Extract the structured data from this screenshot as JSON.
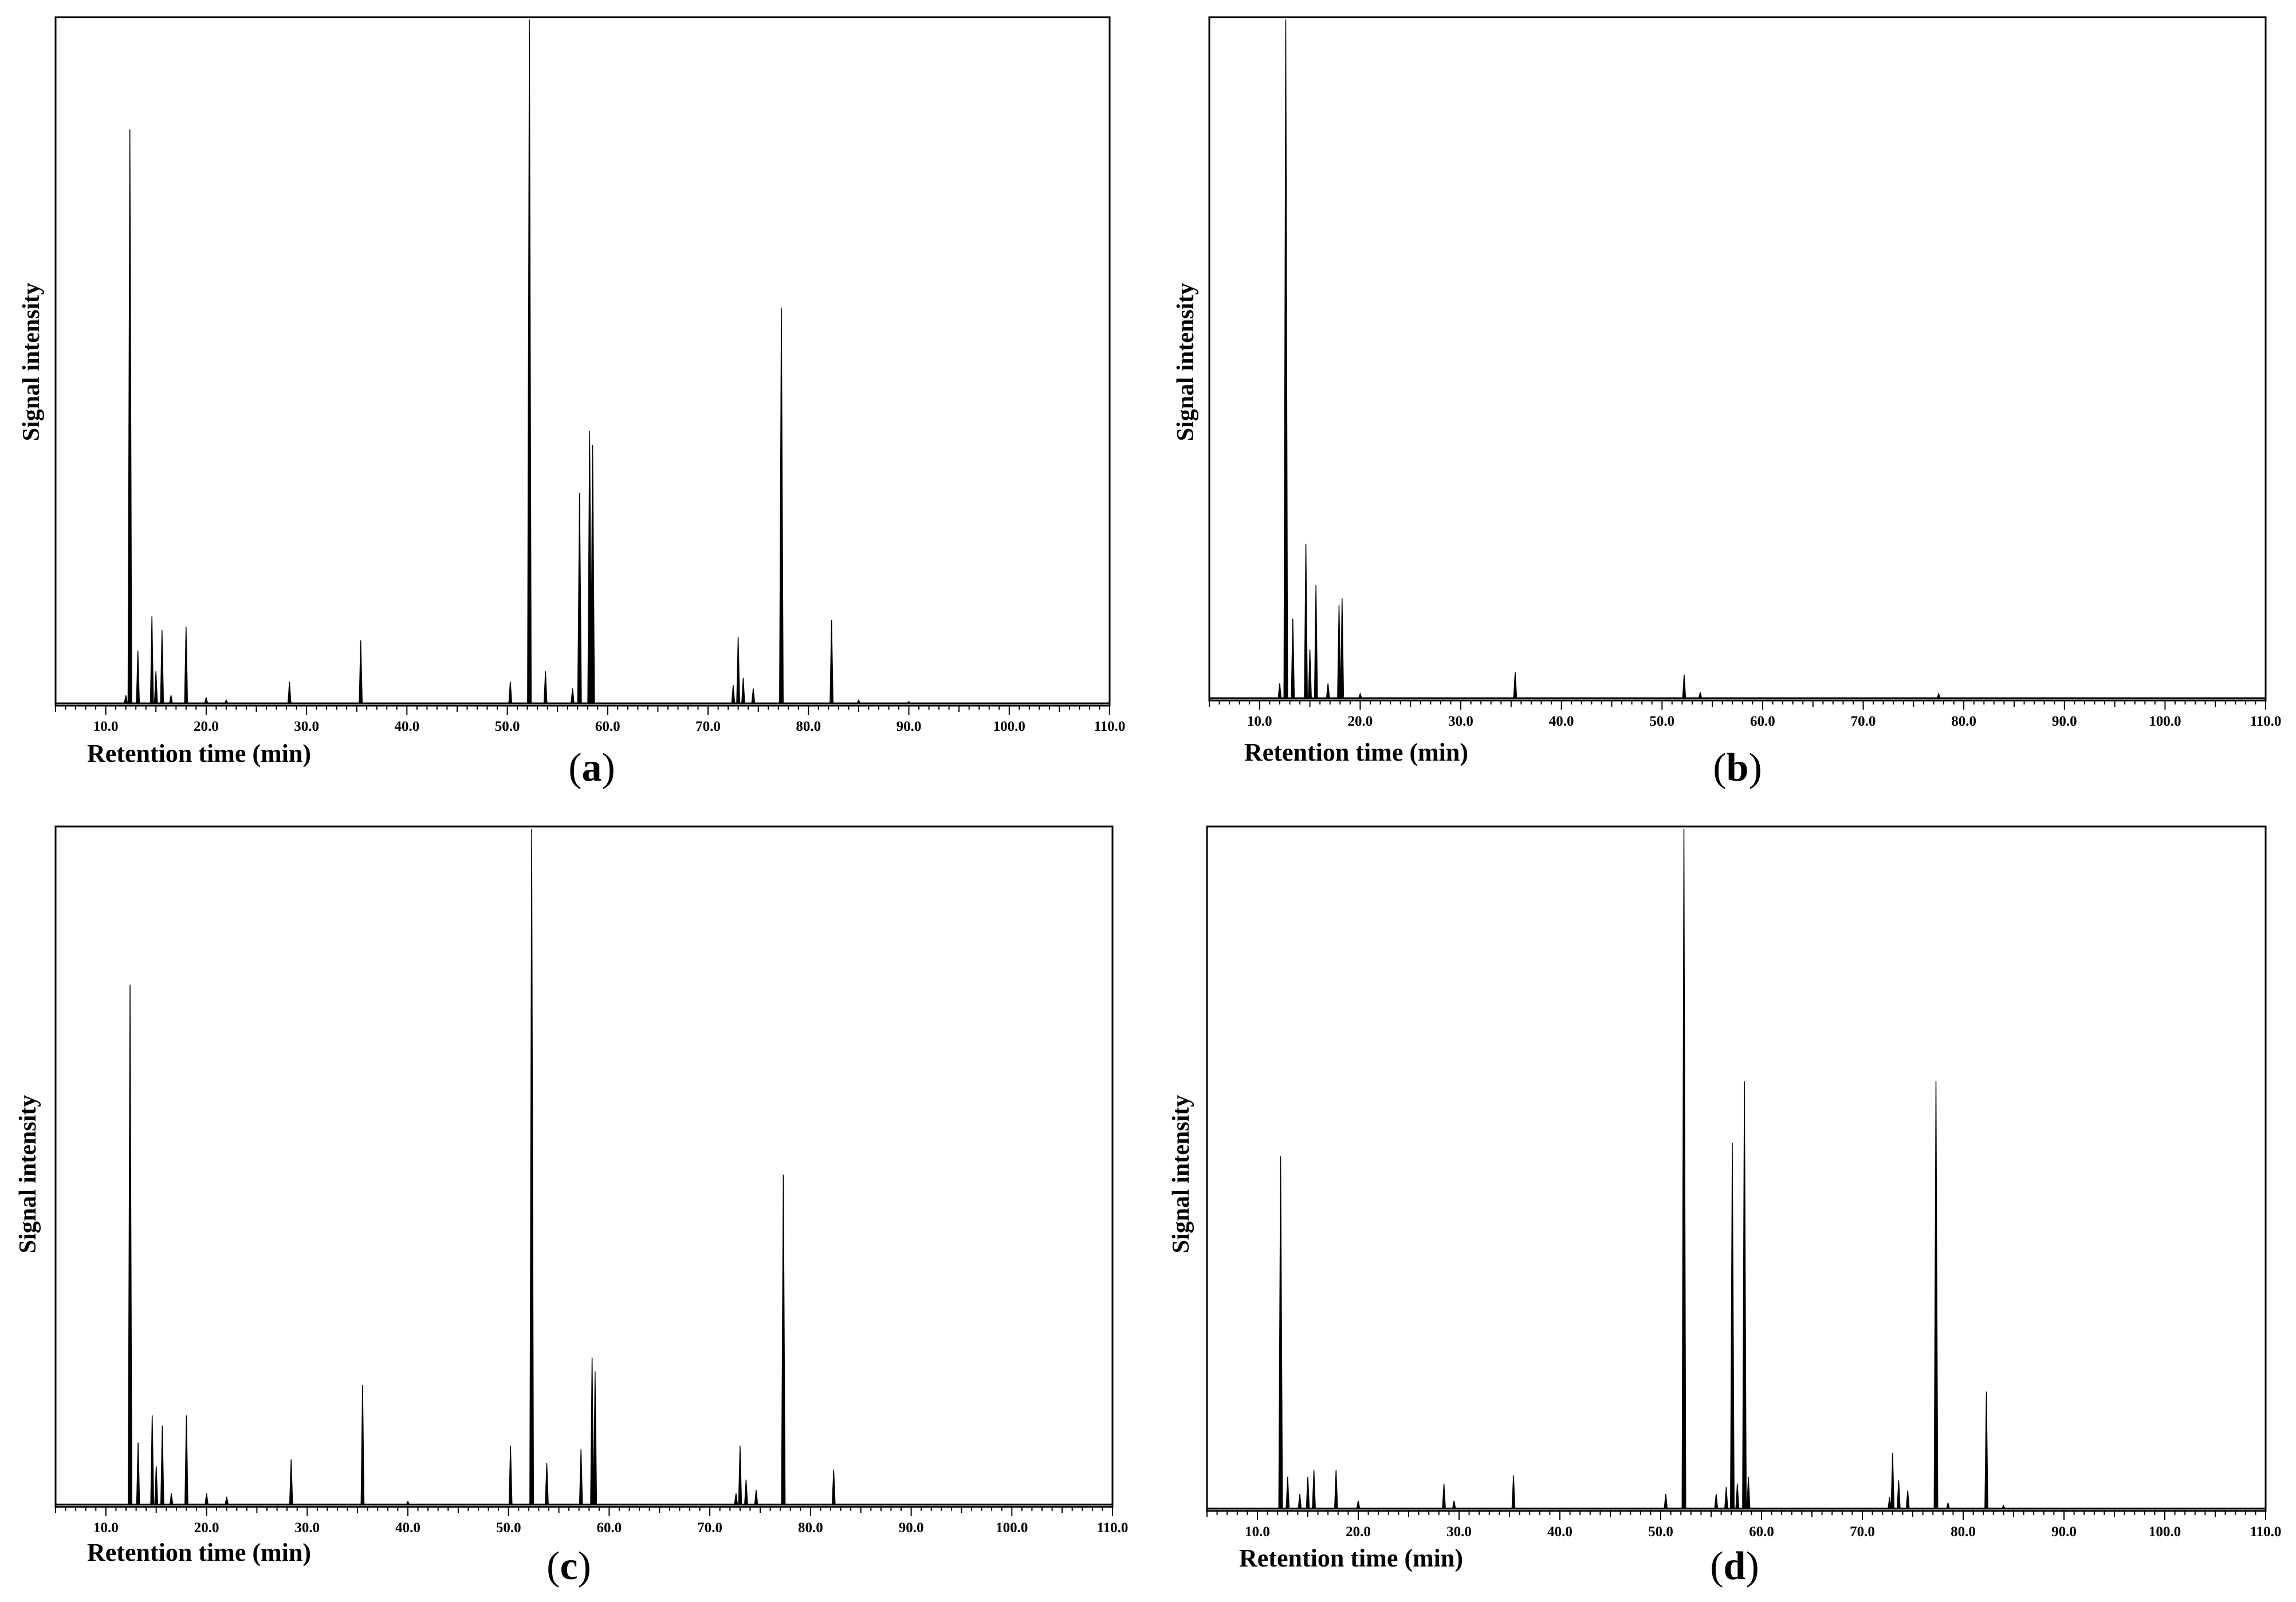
{
  "chart_data": [
    {
      "type": "line",
      "panel_label": "a",
      "xlabel": "Retention time (min)",
      "ylabel": "Signal intensity",
      "xlim": [
        5,
        110
      ],
      "ylim": [
        0,
        100
      ],
      "x_ticks": [
        "10.0",
        "20.0",
        "30.0",
        "40.0",
        "50.0",
        "60.0",
        "70.0",
        "80.0",
        "90.0",
        "100.0",
        "110.0"
      ],
      "grid": false,
      "peaks": [
        {
          "x": 12.0,
          "y": 1.5
        },
        {
          "x": 12.4,
          "y": 84
        },
        {
          "x": 13.2,
          "y": 8
        },
        {
          "x": 14.6,
          "y": 13
        },
        {
          "x": 15.0,
          "y": 5
        },
        {
          "x": 15.6,
          "y": 11
        },
        {
          "x": 16.5,
          "y": 1.5
        },
        {
          "x": 18.0,
          "y": 11.5
        },
        {
          "x": 20.0,
          "y": 1.2
        },
        {
          "x": 22.0,
          "y": 0.8
        },
        {
          "x": 28.3,
          "y": 3.5
        },
        {
          "x": 35.4,
          "y": 9.5
        },
        {
          "x": 50.3,
          "y": 3.5
        },
        {
          "x": 52.2,
          "y": 100
        },
        {
          "x": 53.8,
          "y": 5
        },
        {
          "x": 56.5,
          "y": 2.5
        },
        {
          "x": 57.2,
          "y": 31
        },
        {
          "x": 58.2,
          "y": 40
        },
        {
          "x": 58.5,
          "y": 38
        },
        {
          "x": 72.5,
          "y": 3
        },
        {
          "x": 73.0,
          "y": 10
        },
        {
          "x": 73.5,
          "y": 4
        },
        {
          "x": 74.5,
          "y": 2.5
        },
        {
          "x": 77.3,
          "y": 58
        },
        {
          "x": 82.3,
          "y": 12.5
        },
        {
          "x": 85.0,
          "y": 0.8
        },
        {
          "x": 90.0,
          "y": 0.6
        }
      ]
    },
    {
      "type": "line",
      "panel_label": "b",
      "xlabel": "Retention time (min)",
      "ylabel": "Signal intensity",
      "xlim": [
        5,
        110
      ],
      "ylim": [
        0,
        100
      ],
      "x_ticks": [
        "10.0",
        "20.0",
        "30.0",
        "40.0",
        "50.0",
        "60.0",
        "70.0",
        "80.0",
        "90.0",
        "100.0",
        "110.0"
      ],
      "grid": false,
      "peaks": [
        {
          "x": 12.0,
          "y": 2.5
        },
        {
          "x": 12.6,
          "y": 100
        },
        {
          "x": 13.3,
          "y": 12
        },
        {
          "x": 14.6,
          "y": 23
        },
        {
          "x": 15.0,
          "y": 7.5
        },
        {
          "x": 15.6,
          "y": 17
        },
        {
          "x": 16.8,
          "y": 2.5
        },
        {
          "x": 17.9,
          "y": 14
        },
        {
          "x": 18.2,
          "y": 15
        },
        {
          "x": 20.0,
          "y": 1.0
        },
        {
          "x": 35.4,
          "y": 4.2
        },
        {
          "x": 52.2,
          "y": 3.8
        },
        {
          "x": 53.8,
          "y": 1.2
        },
        {
          "x": 77.5,
          "y": 1.0
        }
      ]
    },
    {
      "type": "line",
      "panel_label": "c",
      "xlabel": "Retention time (min)",
      "ylabel": "Signal intensity",
      "xlim": [
        5,
        110
      ],
      "ylim": [
        0,
        100
      ],
      "x_ticks": [
        "10.0",
        "20.0",
        "30.0",
        "40.0",
        "50.0",
        "60.0",
        "70.0",
        "80.0",
        "90.0",
        "100.0",
        "110.0"
      ],
      "grid": false,
      "peaks": [
        {
          "x": 12.4,
          "y": 77
        },
        {
          "x": 13.2,
          "y": 9.5
        },
        {
          "x": 14.6,
          "y": 13.5
        },
        {
          "x": 15.0,
          "y": 6
        },
        {
          "x": 15.6,
          "y": 12
        },
        {
          "x": 16.5,
          "y": 2
        },
        {
          "x": 18.0,
          "y": 13.5
        },
        {
          "x": 20.0,
          "y": 2
        },
        {
          "x": 22.0,
          "y": 1.5
        },
        {
          "x": 28.4,
          "y": 7
        },
        {
          "x": 35.5,
          "y": 18
        },
        {
          "x": 40.0,
          "y": 0.8
        },
        {
          "x": 50.2,
          "y": 9
        },
        {
          "x": 52.3,
          "y": 100
        },
        {
          "x": 53.8,
          "y": 6.5
        },
        {
          "x": 57.2,
          "y": 8.5
        },
        {
          "x": 58.3,
          "y": 22
        },
        {
          "x": 58.6,
          "y": 20
        },
        {
          "x": 72.6,
          "y": 2
        },
        {
          "x": 73.0,
          "y": 9
        },
        {
          "x": 73.6,
          "y": 4
        },
        {
          "x": 74.6,
          "y": 2.5
        },
        {
          "x": 77.3,
          "y": 49
        },
        {
          "x": 82.3,
          "y": 5.5
        }
      ]
    },
    {
      "type": "line",
      "panel_label": "d",
      "xlabel": "Retention time (min)",
      "ylabel": "Signal intensity",
      "xlim": [
        5,
        110
      ],
      "ylim": [
        0,
        100
      ],
      "x_ticks": [
        "10.0",
        "20.0",
        "30.0",
        "40.0",
        "50.0",
        "60.0",
        "70.0",
        "80.0",
        "90.0",
        "100.0",
        "110.0"
      ],
      "grid": false,
      "peaks": [
        {
          "x": 12.3,
          "y": 52
        },
        {
          "x": 13.0,
          "y": 5
        },
        {
          "x": 14.2,
          "y": 2.5
        },
        {
          "x": 15.0,
          "y": 5
        },
        {
          "x": 15.6,
          "y": 6
        },
        {
          "x": 17.8,
          "y": 6
        },
        {
          "x": 20.0,
          "y": 1.5
        },
        {
          "x": 28.5,
          "y": 4
        },
        {
          "x": 29.5,
          "y": 1.5
        },
        {
          "x": 35.4,
          "y": 5.2
        },
        {
          "x": 50.5,
          "y": 2.5
        },
        {
          "x": 52.3,
          "y": 100
        },
        {
          "x": 55.5,
          "y": 2.5
        },
        {
          "x": 56.5,
          "y": 3.5
        },
        {
          "x": 57.1,
          "y": 54
        },
        {
          "x": 57.6,
          "y": 4
        },
        {
          "x": 58.3,
          "y": 63
        },
        {
          "x": 58.7,
          "y": 5
        },
        {
          "x": 72.7,
          "y": 2
        },
        {
          "x": 73.0,
          "y": 8.5
        },
        {
          "x": 73.6,
          "y": 4.5
        },
        {
          "x": 74.5,
          "y": 3
        },
        {
          "x": 77.3,
          "y": 63
        },
        {
          "x": 78.5,
          "y": 1.2
        },
        {
          "x": 82.3,
          "y": 17.5
        },
        {
          "x": 84.0,
          "y": 0.8
        }
      ]
    }
  ]
}
